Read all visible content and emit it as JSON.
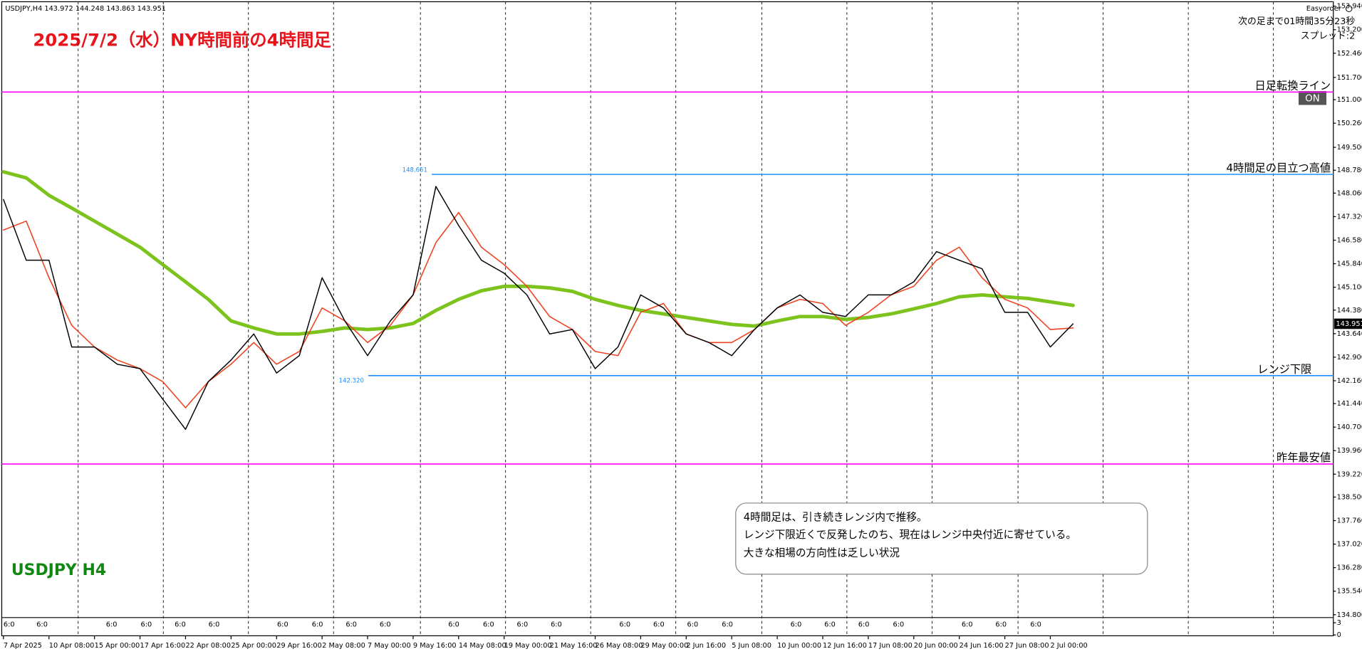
{
  "header": "USDJPY,H4  143.972 144.248 143.863 143.951",
  "plugin": "Easyorder",
  "countdown": "次の足まで01時間35分23秒",
  "spread": "スプレッド:2",
  "button": "ON",
  "notes": [
    "4時間足は、引き続きレンジ内で推移。",
    "レンジ下限近くで反発したのち、現在はレンジ中央付近に寄せている。",
    "大きな相場の方向性は乏しい状況"
  ],
  "chart_data": {
    "type": "line",
    "title": "2025/7/2（水）NY時間前の4時間足",
    "symbol_label": "USDJPY H4",
    "categories": [
      "7 Apr 2025",
      null,
      "10 Apr 08:00",
      null,
      "15 Apr 00:00",
      null,
      "17 Apr 16:00",
      null,
      "22 Apr 08:00",
      null,
      "25 Apr 00:00",
      null,
      "29 Apr 16:00",
      null,
      "2 May 08:00",
      null,
      "7 May 00:00",
      null,
      "9 May 16:00",
      null,
      "14 May 08:00",
      null,
      "19 May 00:00",
      null,
      "21 May 16:00",
      null,
      "26 May 08:00",
      null,
      "29 May 00:00",
      null,
      "2 Jun 16:00",
      null,
      "5 Jun 08:00",
      null,
      "10 Jun 00:00",
      null,
      "12 Jun 16:00",
      null,
      "17 Jun 08:00",
      null,
      "20 Jun 00:00",
      null,
      "24 Jun 16:00",
      null,
      "27 Jun 08:00",
      null,
      "2 Jul 00:00",
      null
    ],
    "session_labels": [
      "6:0",
      "6:0",
      "6:0",
      "6:0",
      "6:0",
      "6:0",
      "6:0",
      "6:0",
      "6:0",
      "6:0",
      "6:0",
      "6:0",
      "6:0",
      "6:0",
      "6:0",
      "6:0",
      "6:0",
      "6:0",
      "6:0",
      "6:0",
      "6:0",
      "6:0",
      "6:0",
      "6:0",
      "6:0"
    ],
    "series": [
      {
        "color": "#000000",
        "width": 1.2,
        "values": [
          147.86,
          145.95,
          145.95,
          143.22,
          143.22,
          142.68,
          142.54,
          141.58,
          140.63,
          142.13,
          142.81,
          143.63,
          142.4,
          142.95,
          145.4,
          144.04,
          142.95,
          144.04,
          144.86,
          148.27,
          147.04,
          145.95,
          145.54,
          144.86,
          143.63,
          143.77,
          142.54,
          143.22,
          144.86,
          144.45,
          143.63,
          143.36,
          142.95,
          143.77,
          144.45,
          144.86,
          144.31,
          144.18,
          144.86,
          144.86,
          145.27,
          146.22,
          145.95,
          145.68,
          144.31,
          144.31,
          143.22,
          143.951
        ]
      },
      {
        "color": "#ee4422",
        "width": 1.3,
        "values": [
          146.9,
          147.18,
          145.4,
          143.9,
          143.22,
          142.81,
          142.54,
          142.13,
          141.31,
          142.13,
          142.68,
          143.36,
          142.68,
          143.08,
          144.45,
          144.04,
          143.36,
          143.9,
          144.86,
          146.5,
          147.45,
          146.36,
          145.81,
          145.13,
          144.18,
          143.77,
          143.08,
          142.95,
          144.31,
          144.59,
          143.63,
          143.36,
          143.36,
          143.77,
          144.45,
          144.72,
          144.59,
          143.9,
          144.31,
          144.86,
          145.13,
          145.95,
          146.36,
          145.4,
          144.72,
          144.45,
          143.77,
          143.82
        ]
      },
      {
        "color": "#7dc31d",
        "width": 4,
        "values": [
          148.73,
          148.54,
          147.99,
          147.59,
          147.18,
          146.77,
          146.36,
          145.81,
          145.27,
          144.72,
          144.04,
          143.82,
          143.63,
          143.63,
          143.71,
          143.82,
          143.77,
          143.82,
          143.96,
          144.37,
          144.72,
          144.99,
          145.13,
          145.13,
          145.08,
          144.97,
          144.72,
          144.53,
          144.37,
          144.26,
          144.15,
          144.04,
          143.93,
          143.88,
          144.04,
          144.18,
          144.18,
          144.09,
          144.15,
          144.26,
          144.42,
          144.59,
          144.8,
          144.86,
          144.8,
          144.75,
          144.64,
          144.53
        ]
      }
    ],
    "ylim": [
      134.71,
      154.08
    ],
    "yticks": [
      {
        "value": 153.94,
        "label": "153.940"
      },
      {
        "value": 153.2,
        "label": "153.200"
      },
      {
        "value": 152.46,
        "label": "152.460"
      },
      {
        "value": 151.7,
        "label": "151.700"
      },
      {
        "value": 151,
        "label": "151.000"
      },
      {
        "value": 150.26,
        "label": "150.260"
      },
      {
        "value": 149.5,
        "label": "149.500"
      },
      {
        "value": 148.78,
        "label": "148.780"
      },
      {
        "value": 148.06,
        "label": "148.060"
      },
      {
        "value": 147.32,
        "label": "147.320"
      },
      {
        "value": 146.58,
        "label": "146.580"
      },
      {
        "value": 145.84,
        "label": "145.840"
      },
      {
        "value": 145.1,
        "label": "145.100"
      },
      {
        "value": 144.38,
        "label": "144.380"
      },
      {
        "value": 143.64,
        "label": "143.640"
      },
      {
        "value": 142.9,
        "label": "142.900"
      },
      {
        "value": 142.16,
        "label": "142.160"
      },
      {
        "value": 141.44,
        "label": "141.440"
      },
      {
        "value": 140.7,
        "label": "140.700"
      },
      {
        "value": 139.96,
        "label": "139.960"
      },
      {
        "value": 139.22,
        "label": "139.220"
      },
      {
        "value": 138.5,
        "label": "138.500"
      },
      {
        "value": 137.76,
        "label": "137.760"
      },
      {
        "value": 137.02,
        "label": "137.020"
      },
      {
        "value": 136.28,
        "label": "136.280"
      },
      {
        "value": 135.54,
        "label": "135.540"
      },
      {
        "value": 134.8,
        "label": "134.800"
      }
    ],
    "levels": [
      {
        "name": "日足転換ライン",
        "value": 151.24,
        "color": "#ff00ff"
      },
      {
        "name": "4時間足の目立つ高値",
        "value": 148.651,
        "color": "#1e90ff"
      },
      {
        "name": "レンジ下限",
        "value": 142.32,
        "value_label": "142.320",
        "color": "#1e90ff"
      },
      {
        "name": "昨年最安値",
        "value": 139.54,
        "color": "#ff00ff"
      }
    ],
    "volume_panel": {
      "ylim": [
        0,
        3
      ],
      "yticks": [
        3,
        0
      ]
    }
  }
}
